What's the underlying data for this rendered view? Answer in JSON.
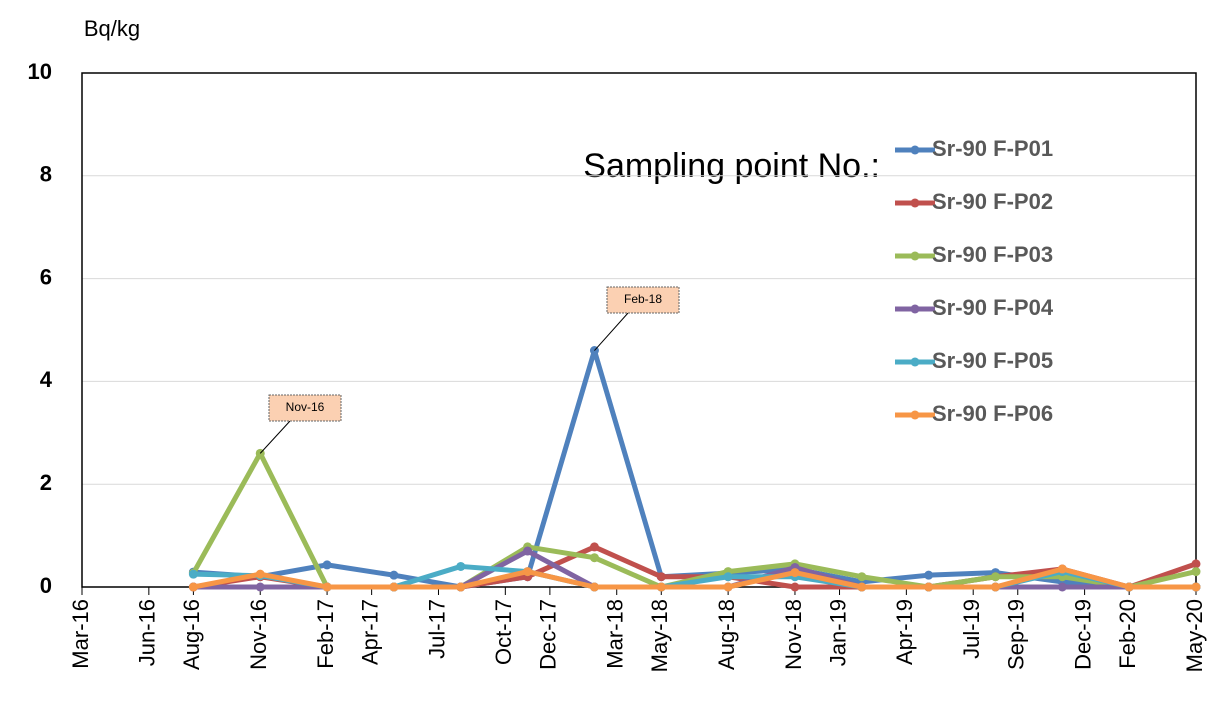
{
  "chart_data": {
    "type": "line",
    "y_label": "Bq/kg",
    "legend_title": "Sampling point No.:",
    "x": [
      "2016-08",
      "2016-11",
      "2017-02",
      "2017-05",
      "2017-08",
      "2017-11",
      "2018-02",
      "2018-05",
      "2018-08",
      "2018-11",
      "2019-02",
      "2019-05",
      "2019-08",
      "2019-11",
      "2020-02",
      "2020-05"
    ],
    "series": [
      {
        "name": "Sr-90 F-P01",
        "color": "#4f81bd",
        "values": [
          0.29,
          0.2,
          0.43,
          0.23,
          0,
          0.2,
          4.6,
          0.2,
          0.27,
          0.35,
          0.1,
          0.23,
          0.28,
          0.1,
          0,
          0
        ]
      },
      {
        "name": "Sr-90 F-P02",
        "color": "#c0504d",
        "values": [
          0,
          0.2,
          0,
          0,
          0,
          0.2,
          0.78,
          0.2,
          0.2,
          0,
          0,
          0,
          0.2,
          0.35,
          0,
          0.45
        ]
      },
      {
        "name": "Sr-90 F-P03",
        "color": "#9bbb59",
        "values": [
          0.27,
          2.6,
          0,
          0,
          0,
          0.78,
          0.57,
          0,
          0.3,
          0.45,
          0.2,
          0,
          0.2,
          0.2,
          0,
          0.3
        ]
      },
      {
        "name": "Sr-90 F-P04",
        "color": "#8064a2",
        "values": [
          0,
          0,
          0,
          0,
          0,
          0.7,
          0,
          0,
          0,
          0.38,
          0,
          0,
          0,
          0,
          0,
          0
        ]
      },
      {
        "name": "Sr-90 F-P05",
        "color": "#4bacc6",
        "values": [
          0.25,
          0.22,
          0,
          0,
          0.4,
          0.3,
          0,
          0,
          0.2,
          0.2,
          0,
          0,
          0,
          0.3,
          0,
          0
        ]
      },
      {
        "name": "Sr-90 F-P06",
        "color": "#f79646",
        "values": [
          0,
          0.25,
          0,
          0,
          0,
          0.3,
          0,
          0,
          0,
          0.28,
          0,
          0,
          0,
          0.35,
          0,
          0
        ]
      }
    ],
    "annotations": [
      "Nov-16",
      "Feb-18"
    ],
    "xlim": [
      "2016-03",
      "2020-05"
    ],
    "xticks": [
      {
        "value": "2016-03",
        "label": "Mar-16"
      },
      {
        "value": "2016-06",
        "label": "Jun-16"
      },
      {
        "value": "2016-08",
        "label": "Aug-16"
      },
      {
        "value": "2016-11",
        "label": "Nov-16"
      },
      {
        "value": "2017-02",
        "label": "Feb-17"
      },
      {
        "value": "2017-04",
        "label": "Apr-17"
      },
      {
        "value": "2017-07",
        "label": "Jul-17"
      },
      {
        "value": "2017-10",
        "label": "Oct-17"
      },
      {
        "value": "2017-12",
        "label": "Dec-17"
      },
      {
        "value": "2018-03",
        "label": "Mar-18"
      },
      {
        "value": "2018-05",
        "label": "May-18"
      },
      {
        "value": "2018-08",
        "label": "Aug-18"
      },
      {
        "value": "2018-11",
        "label": "Nov-18"
      },
      {
        "value": "2019-01",
        "label": "Jan-19"
      },
      {
        "value": "2019-04",
        "label": "Apr-19"
      },
      {
        "value": "2019-07",
        "label": "Jul-19"
      },
      {
        "value": "2019-09",
        "label": "Sep-19"
      },
      {
        "value": "2019-12",
        "label": "Dec-19"
      },
      {
        "value": "2020-02",
        "label": "Feb-20"
      },
      {
        "value": "2020-05",
        "label": "May-20"
      }
    ],
    "ylim": [
      0,
      10
    ],
    "yticks": [
      0,
      2,
      4,
      6,
      8,
      10
    ],
    "grid": true
  }
}
